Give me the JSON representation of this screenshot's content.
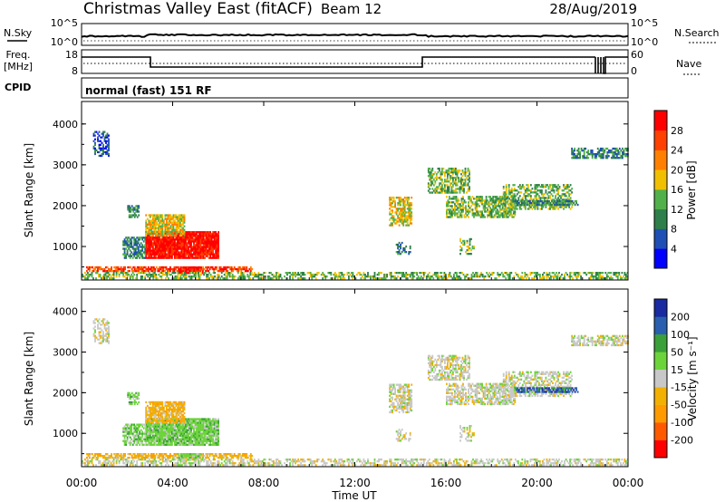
{
  "header": {
    "station": "Christmas Valley East (fitACF)",
    "beam": "Beam 12",
    "date": "28/Aug/2019"
  },
  "top_panels": {
    "nsky_label": "N.Sky",
    "nsky_ticks": [
      "10^5",
      "10^0"
    ],
    "nsearch_label": "N.Search",
    "nsearch_ticks": [
      "10^5",
      "10^0"
    ],
    "freq_label_1": "Freq.",
    "freq_label_2": "[MHz]",
    "freq_ticks": [
      "18",
      "8"
    ],
    "nave_label": "Nave",
    "nave_ticks": [
      "60",
      "0"
    ],
    "cpid_label": "CPID",
    "cpid_value": "normal (fast) 151 RF"
  },
  "colors": {
    "power": [
      "#0000ff",
      "#1e4fb5",
      "#2f7f4a",
      "#52b04a",
      "#f0c000",
      "#ff8000",
      "#ff4000",
      "#ff0000"
    ],
    "velocity": [
      "#ff0000",
      "#ff5a00",
      "#ff9a00",
      "#f2b000",
      "#c8c8c8",
      "#6cd43a",
      "#3aa03a",
      "#2a5fb0",
      "#1a2aa0"
    ]
  },
  "chart_data": [
    {
      "type": "heatmap",
      "name": "power",
      "ylabel": "Slant Range [km]",
      "yticks": [
        "4000",
        "3000",
        "2000",
        "1000"
      ],
      "ylim": [
        180,
        4550
      ],
      "colorbar_label": "Power [dB]",
      "colorbar_ticks": [
        "28",
        "24",
        "20",
        "16",
        "12",
        "8",
        "4"
      ]
    },
    {
      "type": "heatmap",
      "name": "velocity",
      "ylabel": "Slant Range [km]",
      "yticks": [
        "4000",
        "3000",
        "2000",
        "1000"
      ],
      "ylim": [
        180,
        4550
      ],
      "colorbar_label": "Velocity [m s⁻¹]",
      "colorbar_ticks": [
        "200",
        "100",
        "50",
        "15",
        "-15",
        "-50",
        "-100",
        "-200"
      ]
    }
  ],
  "x_axis": {
    "ticks": [
      "00:00",
      "04:00",
      "08:00",
      "12:00",
      "16:00",
      "20:00",
      "00:00"
    ],
    "label": "Time UT"
  }
}
